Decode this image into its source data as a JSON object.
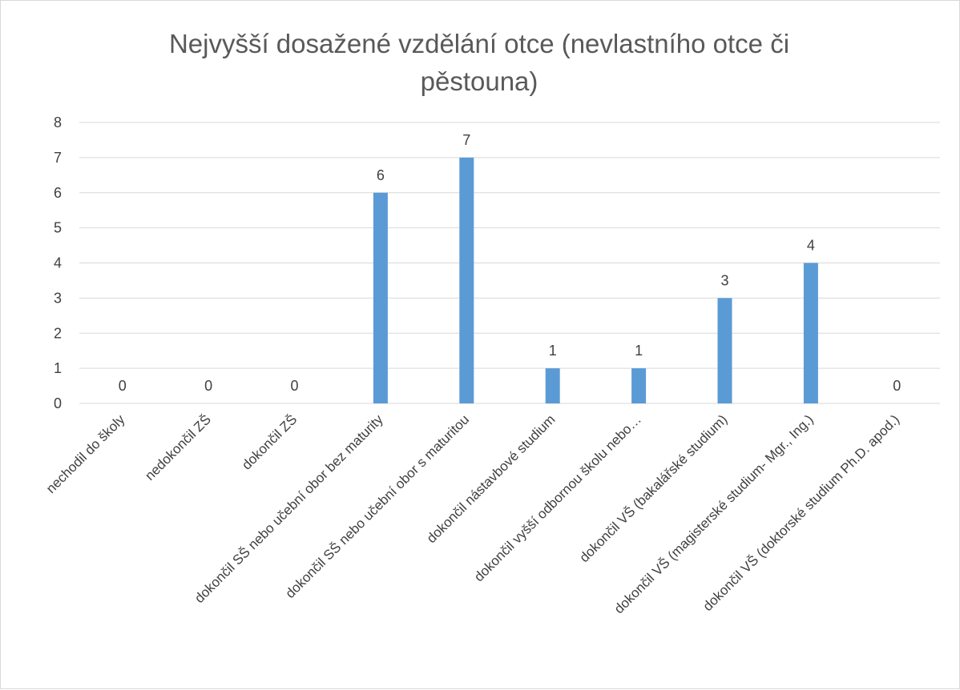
{
  "chart_data": {
    "type": "bar",
    "title_lines": [
      "Nejvyšší dosažené vzdělání otce (nevlastního otce či",
      "pěstouna)"
    ],
    "categories": [
      "nechodil do školy",
      "nedokončil ZŠ",
      "dokončil ZŠ",
      "dokončil SŠ nebo učební obor bez maturity",
      "dokončil SŠ nebo učební obor s maturitou",
      "dokončil nástavbové studium",
      "dokončil vyšší odbornou školu nebo…",
      "dokončil VŠ (bakalářské studium)",
      "dokončil VŠ (magisterské studium- Mgr., Ing.)",
      "dokončil VŠ (doktorské studium Ph.D. apod.)"
    ],
    "values": [
      0,
      0,
      0,
      6,
      7,
      1,
      1,
      3,
      4,
      0
    ],
    "ylim": [
      0,
      8
    ],
    "yticks": [
      "0",
      "1",
      "2",
      "3",
      "4",
      "5",
      "6",
      "7",
      "8"
    ],
    "data_labels": [
      "0",
      "0",
      "0",
      "6",
      "7",
      "1",
      "1",
      "3",
      "4",
      "0"
    ],
    "grid": true,
    "legend": "none",
    "bar_color": "#5b9bd5"
  }
}
